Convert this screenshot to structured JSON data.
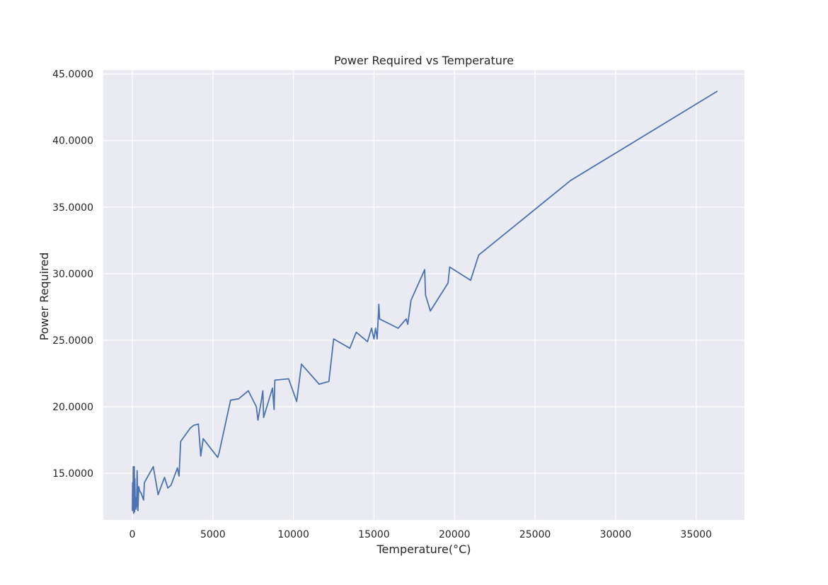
{
  "chart_data": {
    "type": "line",
    "title": "Power Required vs Temperature",
    "xlabel": "Temperature(°C)",
    "ylabel": "Power Required",
    "xlim": [
      -1800,
      38000
    ],
    "ylim": [
      11.5,
      45.3
    ],
    "x_ticks": [
      0,
      5000,
      10000,
      15000,
      20000,
      25000,
      30000,
      35000
    ],
    "x_tick_labels": [
      "0",
      "5000",
      "10000",
      "15000",
      "20000",
      "25000",
      "30000",
      "35000"
    ],
    "y_ticks": [
      15,
      20,
      25,
      30,
      35,
      40,
      45
    ],
    "y_tick_labels": [
      "15.0000",
      "20.0000",
      "25.0000",
      "30.0000",
      "35.0000",
      "40.0000",
      "45.0000"
    ],
    "grid": true,
    "colors": {
      "background": "#eaeaf2",
      "grid": "#ffffff",
      "line": "#4c72b0"
    },
    "series": [
      {
        "x": [
          0,
          20,
          40,
          60,
          80,
          100,
          120,
          140,
          160,
          180,
          200,
          230,
          260,
          300,
          350,
          400,
          450,
          550,
          700,
          750,
          1300,
          1600,
          2000,
          2200,
          2400,
          2800,
          2900,
          3000,
          3600,
          3800,
          4100,
          4250,
          4400,
          5300,
          5400,
          6100,
          6600,
          7200,
          7700,
          7800,
          8000,
          8100,
          8150,
          8700,
          8800,
          8850,
          9700,
          10200,
          10500,
          11600,
          12200,
          12500,
          13500,
          13900,
          14600,
          14850,
          15000,
          15100,
          15200,
          15300,
          15350,
          16500,
          17000,
          17100,
          17300,
          18150,
          18200,
          18500,
          19600,
          19700,
          21000,
          21500,
          27200,
          36300
        ],
        "y": [
          12.2,
          14.3,
          12.9,
          15.5,
          12.0,
          13.5,
          15.5,
          12.1,
          14.6,
          12.5,
          13.2,
          12.3,
          12.5,
          15.2,
          12.2,
          14.0,
          13.7,
          13.5,
          13.0,
          14.3,
          15.5,
          13.4,
          14.7,
          13.9,
          14.1,
          15.4,
          14.8,
          17.4,
          18.4,
          18.6,
          18.7,
          16.3,
          17.6,
          16.2,
          16.6,
          20.5,
          20.6,
          21.2,
          20.0,
          19.0,
          20.4,
          21.2,
          19.2,
          21.4,
          19.8,
          22.0,
          22.1,
          20.4,
          23.2,
          21.7,
          21.9,
          25.1,
          24.4,
          25.6,
          24.9,
          25.9,
          25.1,
          25.9,
          25.1,
          27.7,
          26.6,
          25.9,
          26.6,
          26.2,
          28.0,
          30.3,
          28.4,
          27.2,
          29.3,
          30.5,
          29.5,
          31.4,
          37.0,
          43.7
        ]
      }
    ]
  }
}
